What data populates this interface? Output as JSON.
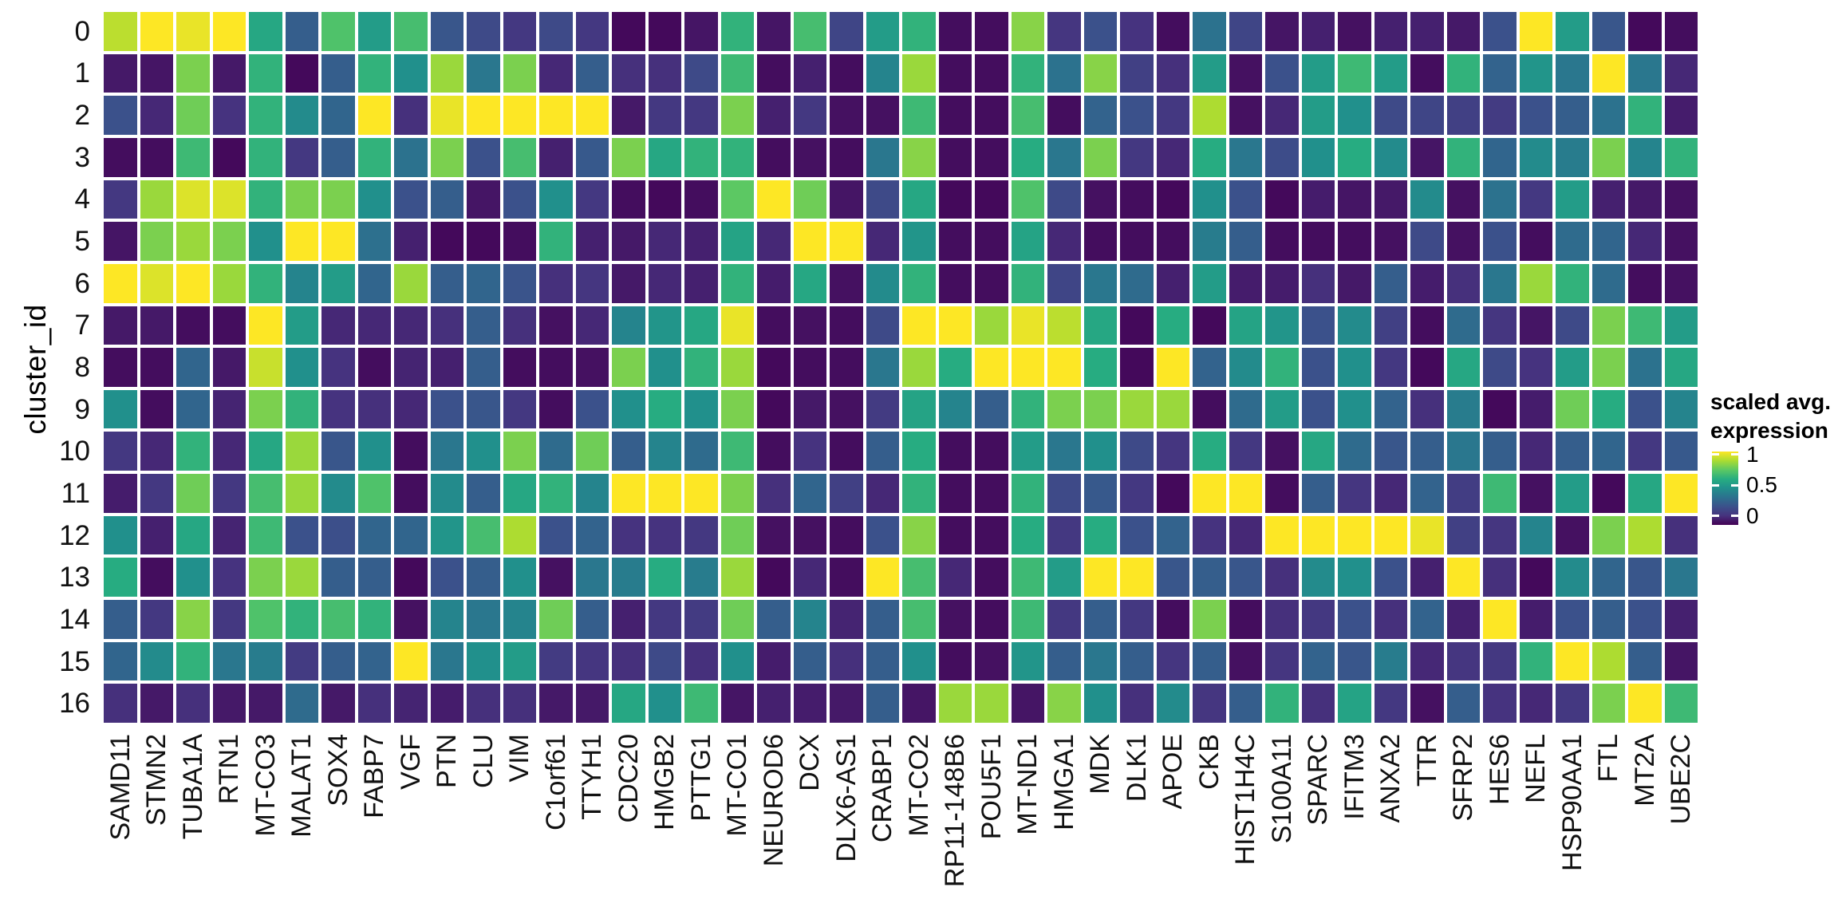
{
  "figure": {
    "y_axis_title": "cluster_id",
    "legend": {
      "title_line1": "scaled avg.",
      "title_line2": "expression",
      "tick_labels": [
        "1",
        "0.5",
        "0"
      ],
      "tick_values": [
        1,
        0.5,
        0
      ]
    }
  },
  "chart_data": {
    "type": "heatmap",
    "title": "",
    "xlabel": "",
    "ylabel": "cluster_id",
    "legend_title": "scaled avg. expression",
    "value_range": [
      0,
      1
    ],
    "grid": false,
    "legend_position": "right",
    "colormap": "viridis",
    "colormap_anchors": [
      [
        0,
        "#440154"
      ],
      [
        0.125,
        "#46327e"
      ],
      [
        0.25,
        "#3b518b"
      ],
      [
        0.375,
        "#2c718e"
      ],
      [
        0.5,
        "#21908c"
      ],
      [
        0.625,
        "#27ad81"
      ],
      [
        0.75,
        "#5cc863"
      ],
      [
        0.875,
        "#aadc32"
      ],
      [
        1,
        "#fde725"
      ]
    ],
    "rows": [
      "0",
      "1",
      "2",
      "3",
      "4",
      "5",
      "6",
      "7",
      "8",
      "9",
      "10",
      "11",
      "12",
      "13",
      "14",
      "15",
      "16"
    ],
    "columns": [
      "SAMD11",
      "STMN2",
      "TUBA1A",
      "RTN1",
      "MT-CO3",
      "MALAT1",
      "SOX4",
      "FABP7",
      "VGF",
      "PTN",
      "CLU",
      "VIM",
      "C1orf61",
      "TTYH1",
      "CDC20",
      "HMGB2",
      "PTTG1",
      "MT-CO1",
      "NEUROD6",
      "DCX",
      "DLX6-AS1",
      "CRABP1",
      "MT-CO2",
      "RP11-148B6",
      "POU5F1",
      "MT-ND1",
      "HMGA1",
      "MDK",
      "DLK1",
      "APOE",
      "CKB",
      "HIST1H4C",
      "S100A11",
      "SPARC",
      "IFITM3",
      "ANXA2",
      "TTR",
      "SFRP2",
      "HES6",
      "NEFL",
      "HSP90AA1",
      "FTL",
      "MT2A",
      "UBE2C"
    ],
    "values": [
      [
        0.9,
        1,
        0.97,
        1,
        0.6,
        0.3,
        0.72,
        0.55,
        0.7,
        0.27,
        0.22,
        0.15,
        0.22,
        0.15,
        0.02,
        0.02,
        0.05,
        0.65,
        0.05,
        0.7,
        0.2,
        0.55,
        0.65,
        0.03,
        0.03,
        0.82,
        0.14,
        0.25,
        0.13,
        0.03,
        0.38,
        0.2,
        0.05,
        0.08,
        0.04,
        0.08,
        0.08,
        0.06,
        0.25,
        1,
        0.55,
        0.27,
        0.02,
        0.03
      ],
      [
        0.06,
        0.05,
        0.8,
        0.06,
        0.65,
        0.02,
        0.3,
        0.65,
        0.5,
        0.85,
        0.4,
        0.8,
        0.1,
        0.3,
        0.12,
        0.12,
        0.22,
        0.68,
        0.03,
        0.08,
        0.03,
        0.45,
        0.85,
        0.03,
        0.03,
        0.65,
        0.38,
        0.82,
        0.18,
        0.12,
        0.55,
        0.04,
        0.25,
        0.55,
        0.68,
        0.55,
        0.03,
        0.65,
        0.32,
        0.52,
        0.4,
        1,
        0.4,
        0.1
      ],
      [
        0.25,
        0.1,
        0.78,
        0.13,
        0.65,
        0.48,
        0.33,
        1,
        0.12,
        0.97,
        1,
        1,
        1,
        1,
        0.06,
        0.15,
        0.15,
        0.8,
        0.08,
        0.15,
        0.04,
        0.04,
        0.68,
        0.03,
        0.03,
        0.7,
        0.03,
        0.32,
        0.25,
        0.15,
        0.88,
        0.04,
        0.1,
        0.55,
        0.5,
        0.22,
        0.2,
        0.18,
        0.16,
        0.25,
        0.3,
        0.38,
        0.65,
        0.07
      ],
      [
        0.03,
        0.03,
        0.68,
        0.02,
        0.65,
        0.15,
        0.3,
        0.65,
        0.38,
        0.8,
        0.25,
        0.7,
        0.08,
        0.28,
        0.8,
        0.6,
        0.65,
        0.65,
        0.03,
        0.04,
        0.03,
        0.4,
        0.82,
        0.03,
        0.03,
        0.62,
        0.4,
        0.8,
        0.15,
        0.1,
        0.62,
        0.4,
        0.23,
        0.5,
        0.62,
        0.48,
        0.05,
        0.65,
        0.33,
        0.48,
        0.42,
        0.8,
        0.45,
        0.65
      ],
      [
        0.15,
        0.85,
        0.95,
        0.95,
        0.65,
        0.8,
        0.8,
        0.5,
        0.25,
        0.3,
        0.05,
        0.25,
        0.5,
        0.15,
        0.03,
        0.02,
        0.03,
        0.75,
        1,
        0.78,
        0.05,
        0.22,
        0.6,
        0.02,
        0.02,
        0.72,
        0.22,
        0.04,
        0.03,
        0.02,
        0.5,
        0.25,
        0.02,
        0.07,
        0.05,
        0.06,
        0.48,
        0.04,
        0.38,
        0.15,
        0.55,
        0.08,
        0.06,
        0.04
      ],
      [
        0.05,
        0.8,
        0.85,
        0.8,
        0.5,
        1,
        1,
        0.37,
        0.08,
        0.02,
        0.02,
        0.03,
        0.65,
        0.08,
        0.06,
        0.1,
        0.08,
        0.58,
        0.1,
        1,
        1,
        0.1,
        0.52,
        0.03,
        0.03,
        0.58,
        0.1,
        0.03,
        0.03,
        0.03,
        0.42,
        0.3,
        0.03,
        0.03,
        0.03,
        0.04,
        0.22,
        0.04,
        0.25,
        0.03,
        0.35,
        0.33,
        0.1,
        0.04
      ],
      [
        1,
        0.95,
        1,
        0.85,
        0.65,
        0.45,
        0.55,
        0.33,
        0.85,
        0.3,
        0.33,
        0.26,
        0.12,
        0.14,
        0.06,
        0.1,
        0.08,
        0.65,
        0.07,
        0.6,
        0.04,
        0.48,
        0.65,
        0.03,
        0.03,
        0.65,
        0.2,
        0.4,
        0.35,
        0.08,
        0.55,
        0.07,
        0.07,
        0.12,
        0.06,
        0.3,
        0.07,
        0.12,
        0.4,
        0.85,
        0.65,
        0.35,
        0.03,
        0.04
      ],
      [
        0.06,
        0.06,
        0.03,
        0.03,
        1,
        0.55,
        0.1,
        0.1,
        0.1,
        0.12,
        0.3,
        0.12,
        0.04,
        0.1,
        0.45,
        0.52,
        0.6,
        0.97,
        0.03,
        0.04,
        0.03,
        0.22,
        1,
        1,
        0.85,
        0.97,
        0.9,
        0.6,
        0.02,
        0.62,
        0.02,
        0.58,
        0.52,
        0.25,
        0.48,
        0.18,
        0.03,
        0.35,
        0.14,
        0.05,
        0.22,
        0.8,
        0.68,
        0.55
      ],
      [
        0.03,
        0.03,
        0.33,
        0.06,
        0.92,
        0.5,
        0.13,
        0.03,
        0.09,
        0.08,
        0.3,
        0.03,
        0.03,
        0.04,
        0.8,
        0.5,
        0.65,
        0.85,
        0.02,
        0.03,
        0.03,
        0.4,
        0.85,
        0.62,
        1,
        1,
        1,
        0.62,
        0.02,
        1,
        0.32,
        0.48,
        0.65,
        0.25,
        0.5,
        0.15,
        0.02,
        0.6,
        0.22,
        0.13,
        0.55,
        0.8,
        0.38,
        0.6
      ],
      [
        0.5,
        0.03,
        0.33,
        0.09,
        0.8,
        0.65,
        0.13,
        0.12,
        0.1,
        0.25,
        0.27,
        0.15,
        0.03,
        0.25,
        0.5,
        0.62,
        0.5,
        0.8,
        0.02,
        0.06,
        0.04,
        0.16,
        0.58,
        0.45,
        0.3,
        0.65,
        0.8,
        0.8,
        0.85,
        0.85,
        0.03,
        0.35,
        0.55,
        0.25,
        0.5,
        0.32,
        0.12,
        0.42,
        0.02,
        0.07,
        0.78,
        0.62,
        0.25,
        0.45
      ],
      [
        0.15,
        0.1,
        0.65,
        0.1,
        0.6,
        0.85,
        0.27,
        0.5,
        0.03,
        0.4,
        0.5,
        0.8,
        0.35,
        0.78,
        0.3,
        0.45,
        0.35,
        0.68,
        0.03,
        0.13,
        0.03,
        0.3,
        0.62,
        0.03,
        0.03,
        0.55,
        0.4,
        0.5,
        0.22,
        0.14,
        0.62,
        0.15,
        0.04,
        0.6,
        0.35,
        0.27,
        0.3,
        0.4,
        0.3,
        0.1,
        0.3,
        0.33,
        0.15,
        0.28
      ],
      [
        0.07,
        0.15,
        0.78,
        0.15,
        0.7,
        0.85,
        0.48,
        0.72,
        0.03,
        0.48,
        0.3,
        0.6,
        0.65,
        0.45,
        1,
        1,
        1,
        0.8,
        0.12,
        0.33,
        0.18,
        0.1,
        0.65,
        0.03,
        0.03,
        0.65,
        0.22,
        0.28,
        0.15,
        0.02,
        1,
        1,
        0.03,
        0.3,
        0.14,
        0.1,
        0.32,
        0.17,
        0.68,
        0.04,
        0.55,
        0.02,
        0.6,
        1
      ],
      [
        0.5,
        0.08,
        0.6,
        0.09,
        0.68,
        0.25,
        0.24,
        0.33,
        0.33,
        0.52,
        0.7,
        0.88,
        0.25,
        0.32,
        0.13,
        0.13,
        0.15,
        0.78,
        0.04,
        0.04,
        0.03,
        0.25,
        0.82,
        0.03,
        0.03,
        0.62,
        0.15,
        0.62,
        0.25,
        0.32,
        0.13,
        0.1,
        1,
        1,
        1,
        1,
        0.97,
        0.18,
        0.14,
        0.45,
        0.04,
        0.8,
        0.88,
        0.12
      ],
      [
        0.62,
        0.03,
        0.5,
        0.13,
        0.8,
        0.85,
        0.3,
        0.3,
        0.02,
        0.25,
        0.3,
        0.5,
        0.04,
        0.4,
        0.42,
        0.62,
        0.42,
        0.85,
        0.02,
        0.1,
        0.03,
        1,
        0.7,
        0.1,
        0.03,
        0.68,
        0.55,
        1,
        1,
        0.27,
        0.3,
        0.27,
        0.12,
        0.48,
        0.5,
        0.25,
        0.08,
        1,
        0.12,
        0.02,
        0.48,
        0.33,
        0.27,
        0.4
      ],
      [
        0.3,
        0.15,
        0.82,
        0.15,
        0.72,
        0.65,
        0.7,
        0.65,
        0.04,
        0.45,
        0.4,
        0.45,
        0.78,
        0.3,
        0.08,
        0.15,
        0.16,
        0.78,
        0.3,
        0.45,
        0.09,
        0.3,
        0.7,
        0.04,
        0.03,
        0.68,
        0.15,
        0.3,
        0.15,
        0.03,
        0.8,
        0.03,
        0.12,
        0.15,
        0.25,
        0.12,
        0.32,
        0.08,
        1,
        0.07,
        0.25,
        0.3,
        0.25,
        0.08
      ],
      [
        0.33,
        0.48,
        0.65,
        0.4,
        0.42,
        0.16,
        0.3,
        0.32,
        1,
        0.4,
        0.5,
        0.55,
        0.16,
        0.14,
        0.12,
        0.22,
        0.12,
        0.5,
        0.07,
        0.3,
        0.12,
        0.3,
        0.5,
        0.03,
        0.04,
        0.52,
        0.3,
        0.4,
        0.3,
        0.14,
        0.3,
        0.04,
        0.14,
        0.32,
        0.27,
        0.42,
        0.1,
        0.14,
        0.15,
        0.65,
        1,
        0.88,
        0.3,
        0.05
      ],
      [
        0.12,
        0.06,
        0.12,
        0.06,
        0.06,
        0.35,
        0.06,
        0.12,
        0.09,
        0.07,
        0.12,
        0.12,
        0.06,
        0.06,
        0.6,
        0.5,
        0.68,
        0.05,
        0.08,
        0.07,
        0.06,
        0.3,
        0.05,
        0.85,
        0.85,
        0.05,
        0.82,
        0.5,
        0.12,
        0.48,
        0.14,
        0.3,
        0.65,
        0.12,
        0.58,
        0.15,
        0.04,
        0.3,
        0.13,
        0.1,
        0.15,
        0.8,
        1,
        0.68
      ]
    ]
  }
}
